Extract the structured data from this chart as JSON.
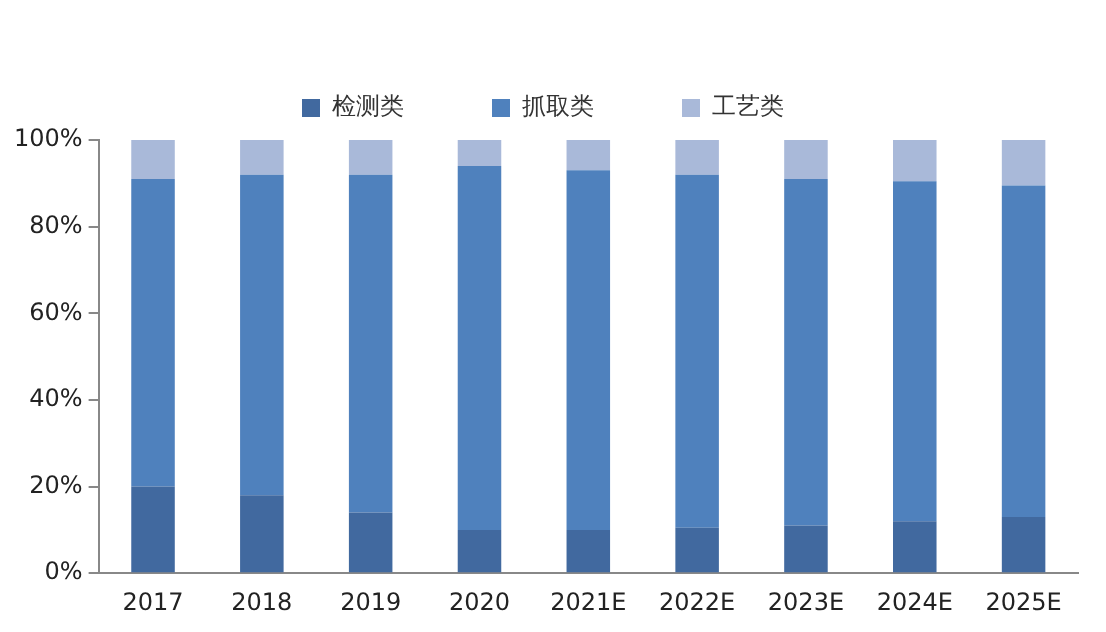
{
  "chart_data": {
    "type": "bar",
    "stacked": true,
    "categories": [
      "2017",
      "2018",
      "2019",
      "2020",
      "2021E",
      "2022E",
      "2023E",
      "2024E",
      "2025E"
    ],
    "series": [
      {
        "name": "检测类",
        "color": "#41699f",
        "values": [
          20,
          18,
          14,
          10,
          10,
          10.5,
          11,
          12,
          13
        ]
      },
      {
        "name": "抓取类",
        "color": "#4f81bd",
        "values": [
          71,
          74,
          78,
          84,
          83,
          81.5,
          80,
          78.5,
          76.5
        ]
      },
      {
        "name": "工艺类",
        "color": "#a9b9d9",
        "values": [
          9,
          8,
          8,
          6,
          7,
          8,
          9,
          9.5,
          10.5
        ]
      }
    ],
    "ylim": [
      0,
      100
    ],
    "yticks": [
      {
        "value": 0,
        "label": "0%"
      },
      {
        "value": 20,
        "label": "20%"
      },
      {
        "value": 40,
        "label": "40%"
      },
      {
        "value": 60,
        "label": "60%"
      },
      {
        "value": 80,
        "label": "80%"
      },
      {
        "value": 100,
        "label": "100%"
      }
    ],
    "grid": false,
    "legend": "top"
  }
}
